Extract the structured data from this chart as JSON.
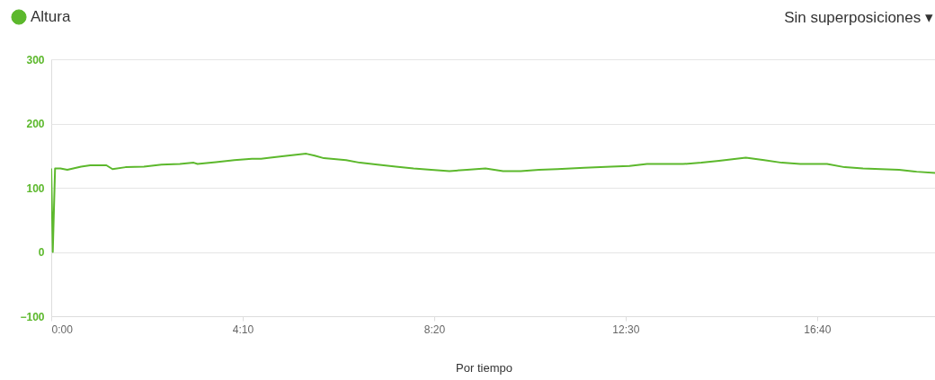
{
  "chart_data": {
    "type": "line",
    "legend": "top left",
    "grid": "y",
    "marker": "none",
    "line_style": "solid",
    "xlim": [
      0,
      1154
    ],
    "xticks": [
      {
        "value": 0,
        "label": "0:00"
      },
      {
        "value": 250,
        "label": "4:10"
      },
      {
        "value": 500,
        "label": "8:20"
      },
      {
        "value": 750,
        "label": "12:30"
      },
      {
        "value": 1000,
        "label": "16:40"
      }
    ],
    "ylim": [
      -100,
      300
    ],
    "yticks": [
      -100,
      0,
      100,
      200,
      300
    ],
    "x": [
      0,
      2,
      5,
      12,
      21,
      39,
      51,
      72,
      80,
      97,
      121,
      144,
      168,
      186,
      191,
      215,
      239,
      262,
      274,
      286,
      309,
      333,
      344,
      356,
      385,
      403,
      426,
      450,
      473,
      496,
      520,
      543,
      567,
      590,
      613,
      637,
      661,
      696,
      731,
      755,
      778,
      825,
      849,
      872,
      907,
      931,
      954,
      978,
      1001,
      1013,
      1036,
      1060,
      1083,
      1107,
      1130,
      1154
    ],
    "series": [
      {
        "name": "Altura",
        "color": "#5cb82c",
        "values": [
          130,
          0,
          130,
          130,
          128,
          133,
          135,
          135,
          129,
          132,
          133,
          136,
          137,
          139,
          137,
          140,
          143,
          145,
          145,
          147,
          150,
          153,
          150,
          146,
          143,
          139,
          136,
          133,
          130,
          128,
          126,
          128,
          130,
          126,
          126,
          128,
          129,
          131,
          133,
          134,
          137,
          137,
          139,
          142,
          147,
          143,
          139,
          137,
          137,
          137,
          132,
          130,
          129,
          128,
          125,
          123
        ]
      }
    ],
    "annotations": [
      "Sin superposiciones ▾",
      "Por tiempo"
    ]
  }
}
